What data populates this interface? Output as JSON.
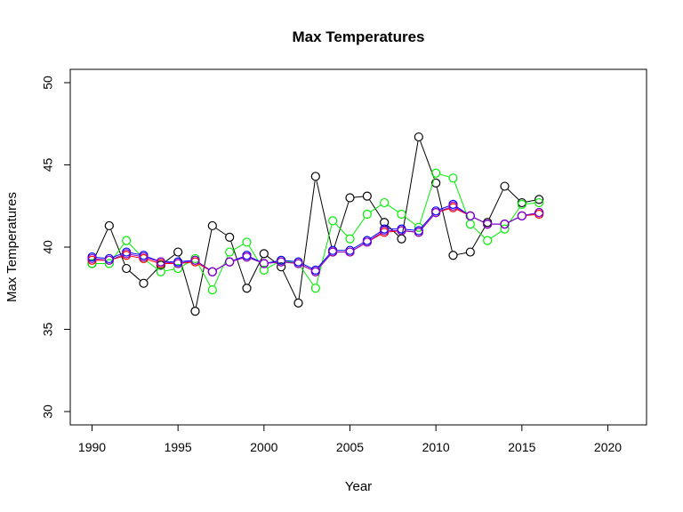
{
  "chart_data": {
    "type": "line",
    "title": "Max Temperatures",
    "xlabel": "Year",
    "ylabel": "Max Temperatures",
    "xlim": [
      1990,
      2020
    ],
    "ylim": [
      30,
      50
    ],
    "xticks": [
      1990,
      1995,
      2000,
      2005,
      2010,
      2015,
      2020
    ],
    "yticks": [
      30,
      35,
      40,
      45,
      50
    ],
    "grid": false,
    "legend": "none",
    "marker": "open-circle",
    "x": [
      1990,
      1991,
      1992,
      1993,
      1994,
      1995,
      1996,
      1997,
      1998,
      1999,
      2000,
      2001,
      2002,
      2003,
      2004,
      2005,
      2006,
      2007,
      2008,
      2009,
      2010,
      2011,
      2012,
      2013,
      2014,
      2015,
      2016
    ],
    "series": [
      {
        "color": "#000000",
        "values": [
          39.0,
          41.3,
          38.7,
          37.8,
          38.9,
          39.7,
          36.1,
          41.3,
          40.6,
          37.5,
          39.6,
          38.8,
          36.6,
          44.3,
          39.7,
          43.0,
          43.1,
          41.5,
          40.5,
          46.7,
          43.9,
          39.5,
          39.7,
          41.5,
          43.7,
          42.7,
          42.9
        ]
      },
      {
        "color": "#00ee00",
        "values": [
          39.0,
          39.0,
          40.4,
          39.3,
          38.5,
          38.7,
          39.3,
          37.4,
          39.7,
          40.3,
          38.6,
          39.2,
          39.0,
          37.5,
          41.6,
          40.5,
          42.0,
          42.7,
          42.0,
          41.2,
          44.5,
          44.2,
          41.4,
          40.4,
          41.1,
          42.6,
          42.7
        ]
      },
      {
        "color": "#ff0000",
        "values": [
          39.2,
          39.2,
          39.5,
          39.3,
          39.0,
          39.0,
          39.1,
          38.5,
          39.1,
          39.4,
          39.0,
          39.1,
          39.0,
          38.5,
          39.7,
          39.7,
          40.3,
          40.9,
          41.0,
          40.9,
          42.1,
          42.4,
          41.9,
          41.4,
          41.4,
          41.9,
          42.0
        ]
      },
      {
        "color": "#0000ff",
        "values": [
          39.4,
          39.3,
          39.7,
          39.5,
          39.1,
          39.1,
          39.2,
          38.5,
          39.1,
          39.5,
          39.0,
          39.2,
          39.1,
          38.6,
          39.8,
          39.8,
          40.4,
          41.1,
          41.1,
          41.0,
          42.2,
          42.6,
          41.9,
          41.4,
          41.4,
          41.9,
          42.1
        ]
      },
      {
        "color": "#8800cc",
        "values": [
          39.3,
          39.2,
          39.6,
          39.4,
          39.1,
          39.0,
          39.2,
          38.5,
          39.1,
          39.4,
          39.0,
          39.1,
          39.0,
          38.5,
          39.7,
          39.7,
          40.3,
          41.0,
          41.0,
          40.9,
          42.1,
          42.5,
          41.9,
          41.4,
          41.4,
          41.9,
          42.1
        ]
      }
    ]
  }
}
